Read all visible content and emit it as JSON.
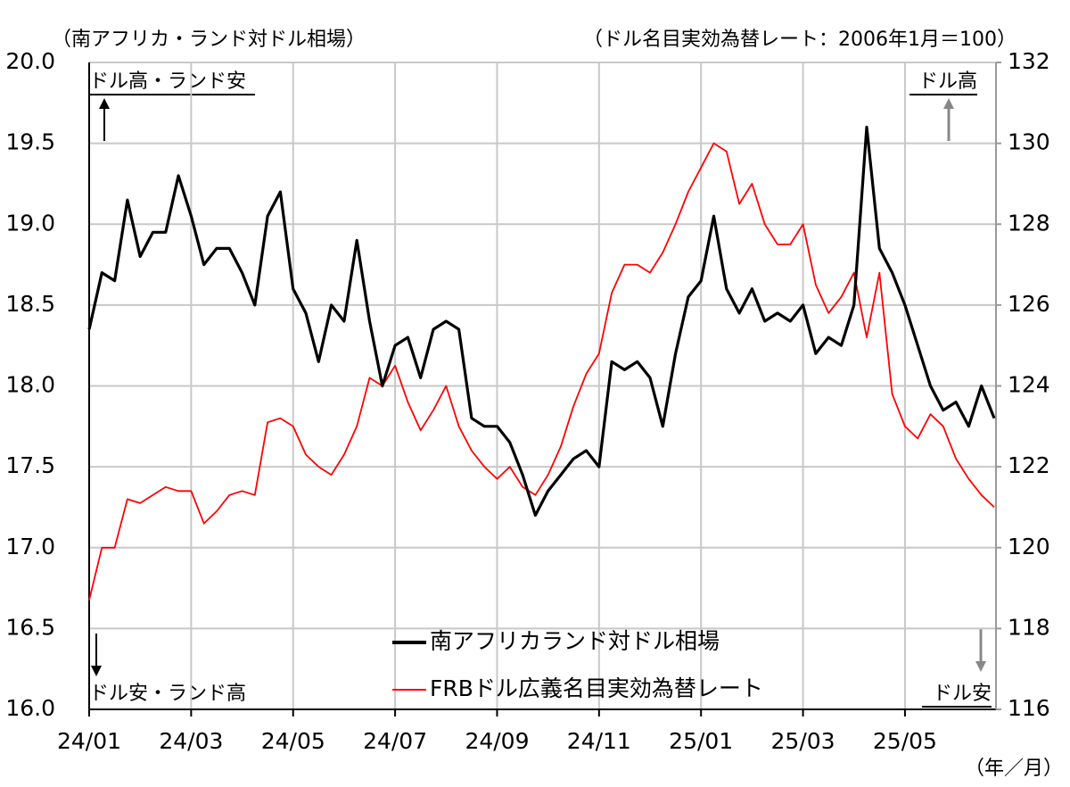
{
  "chart_data": {
    "type": "line",
    "y_label": "（南アフリカ・ランド対ドル相場）",
    "y2_label": "（ドル名目実効為替レート：2006年1月＝100）",
    "x_label": "（年／月）",
    "annotations": [
      "ドル高・ランド安",
      "ドル安・ランド高",
      "ドル高",
      "ドル安"
    ],
    "categories": [
      "24/01",
      null,
      null,
      null,
      null,
      null,
      null,
      null,
      "24/03",
      null,
      null,
      null,
      null,
      null,
      null,
      null,
      "24/05",
      null,
      null,
      null,
      null,
      null,
      null,
      null,
      "24/07",
      null,
      null,
      null,
      null,
      null,
      null,
      null,
      "24/09",
      null,
      null,
      null,
      null,
      null,
      null,
      null,
      "24/11",
      null,
      null,
      null,
      null,
      null,
      null,
      null,
      "25/01",
      null,
      null,
      null,
      null,
      null,
      null,
      null,
      "25/03",
      null,
      null,
      null,
      null,
      null,
      null,
      null,
      "25/05",
      null,
      null,
      null,
      null,
      null,
      null,
      null
    ],
    "series": [
      {
        "name": "南アフリカランド対ドル相場",
        "color": "#000000",
        "axis": "y",
        "values": [
          18.35,
          18.7,
          18.65,
          19.15,
          18.8,
          18.95,
          18.95,
          19.3,
          19.05,
          18.75,
          18.85,
          18.85,
          18.7,
          18.5,
          19.05,
          19.2,
          18.6,
          18.45,
          18.15,
          18.5,
          18.4,
          18.9,
          18.4,
          18.0,
          18.25,
          18.3,
          18.05,
          18.35,
          18.4,
          18.35,
          17.8,
          17.75,
          17.75,
          17.65,
          17.45,
          17.2,
          17.35,
          17.45,
          17.55,
          17.6,
          17.5,
          18.15,
          18.1,
          18.15,
          18.05,
          17.75,
          18.2,
          18.55,
          18.65,
          19.05,
          18.6,
          18.45,
          18.6,
          18.4,
          18.45,
          18.4,
          18.5,
          18.2,
          18.3,
          18.25,
          18.5,
          19.6,
          18.85,
          18.7,
          18.5,
          18.25,
          18.0,
          17.85,
          17.9,
          17.75,
          18.0,
          17.8
        ]
      },
      {
        "name": "FRBドル広義名目実効為替レート",
        "color": "#ff0000",
        "axis": "y2",
        "values": [
          118.7,
          120.0,
          120.0,
          121.2,
          121.1,
          121.3,
          121.5,
          121.4,
          121.4,
          120.6,
          120.9,
          121.3,
          121.4,
          121.3,
          123.1,
          123.2,
          123.0,
          122.3,
          122.0,
          121.8,
          122.3,
          123.0,
          124.2,
          124.0,
          124.5,
          123.6,
          122.9,
          123.4,
          124.0,
          123.0,
          122.4,
          122.0,
          121.7,
          122.0,
          121.5,
          121.3,
          121.8,
          122.5,
          123.5,
          124.3,
          124.8,
          126.3,
          127.0,
          127.0,
          126.8,
          127.3,
          128.0,
          128.8,
          129.4,
          130.0,
          129.8,
          128.5,
          129.0,
          128.0,
          127.5,
          127.5,
          128.0,
          126.5,
          125.8,
          126.2,
          126.8,
          125.2,
          126.8,
          123.8,
          123.0,
          122.7,
          123.3,
          123.0,
          122.2,
          121.7,
          121.3,
          121.0
        ]
      }
    ],
    "ylim": [
      16,
      20
    ],
    "yticks": [
      {
        "value": 16,
        "label": "16.0"
      },
      16.5,
      {
        "value": 17,
        "label": "17.0"
      },
      17.5,
      {
        "value": 18,
        "label": "18.0"
      },
      18.5,
      {
        "value": 19,
        "label": "19.0"
      },
      19.5,
      {
        "value": 20,
        "label": "20.0"
      }
    ],
    "y2lim": [
      116,
      132
    ],
    "y2ticks": [
      116,
      118,
      120,
      122,
      124,
      126,
      128,
      130,
      132
    ],
    "grid": true
  }
}
